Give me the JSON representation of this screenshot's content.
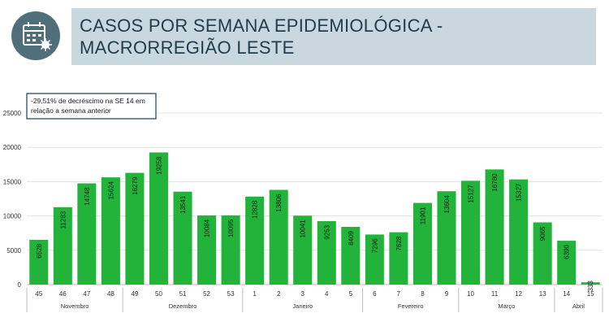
{
  "header": {
    "title_line1": "CASOS POR SEMANA EPIDEMIOLÓGICA -",
    "title_line2": "MACRORREGIÃO LESTE",
    "icon": "calendar-virus-icon"
  },
  "colors": {
    "bar": "#22b33a",
    "title_bg": "#c9d7df",
    "title_text": "#1f3d4a",
    "icon_bg": "#4f6f7b",
    "note_border": "#2c4a66"
  },
  "chart_data": {
    "type": "bar",
    "categories": [
      "45",
      "46",
      "47",
      "48",
      "49",
      "50",
      "51",
      "52",
      "53",
      "1",
      "2",
      "3",
      "4",
      "5",
      "6",
      "7",
      "8",
      "9",
      "10",
      "11",
      "12",
      "13",
      "14",
      "15"
    ],
    "values": [
      6528,
      11283,
      14748,
      15624,
      16279,
      19258,
      13541,
      10084,
      10095,
      12828,
      13806,
      10041,
      9253,
      8409,
      7296,
      7628,
      11901,
      13604,
      15127,
      16780,
      15327,
      9065,
      6390,
      333
    ],
    "months": [
      {
        "label": "Novembro",
        "from": 0,
        "to": 3
      },
      {
        "label": "Dezembro",
        "from": 4,
        "to": 8
      },
      {
        "label": "Janeiro",
        "from": 9,
        "to": 13
      },
      {
        "label": "Fevereiro",
        "from": 14,
        "to": 17
      },
      {
        "label": "Março",
        "from": 18,
        "to": 21
      },
      {
        "label": "Abril",
        "from": 22,
        "to": 23
      }
    ],
    "yticks": [
      0,
      5000,
      10000,
      15000,
      20000,
      25000
    ],
    "ylim": [
      0,
      25000
    ],
    "grid": true,
    "legend": "none",
    "annotation_line1": "-29,51% de decréscimo na SE 14 em",
    "annotation_line2": "relação a semana anterior"
  }
}
